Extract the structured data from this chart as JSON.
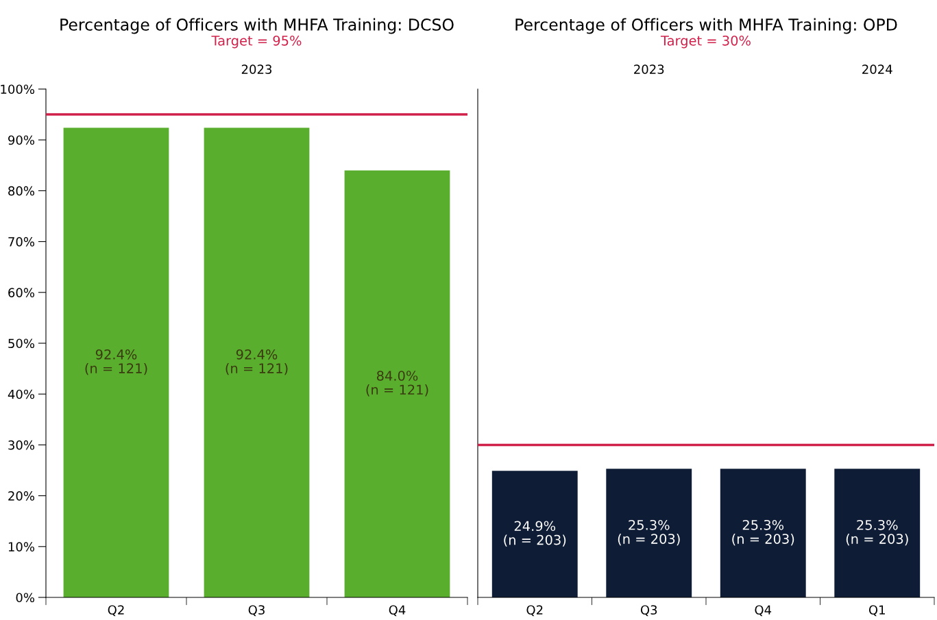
{
  "chart_data": [
    {
      "type": "bar",
      "title": "Percentage of Officers with MHFA Training: DCSO",
      "subtitle": "Target = 95%",
      "categories": [
        "Q2",
        "Q3",
        "Q4"
      ],
      "values": [
        92.4,
        92.4,
        84.0
      ],
      "color": "#5aae2e",
      "value_labels": [
        "92.4%\n(n = 121)",
        "92.4%\n(n = 121)",
        "84.0%\n(n = 121)"
      ],
      "ylim": [
        0,
        100
      ],
      "yticks": [
        {
          "value": 0,
          "label": "0%"
        },
        {
          "value": 10,
          "label": "10%"
        },
        {
          "value": 20,
          "label": "20%"
        },
        {
          "value": 30,
          "label": "30%"
        },
        {
          "value": 40,
          "label": "40%"
        },
        {
          "value": 50,
          "label": "50%"
        },
        {
          "value": 60,
          "label": "60%"
        },
        {
          "value": 70,
          "label": "70%"
        },
        {
          "value": 80,
          "label": "80%"
        },
        {
          "value": 90,
          "label": "90%"
        },
        {
          "value": 100,
          "label": "100%"
        }
      ],
      "ref_lines": [
        {
          "axis": "y",
          "value": 95,
          "color": "#d0204a"
        }
      ],
      "annotations": [
        "2023"
      ]
    },
    {
      "type": "bar",
      "title": "Percentage of Officers with MHFA Training: OPD",
      "subtitle": "Target = 30%",
      "categories": [
        "Q2",
        "Q3",
        "Q4",
        "Q1"
      ],
      "values": [
        24.9,
        25.3,
        25.3,
        25.3
      ],
      "color": "#0f1c36",
      "value_labels": [
        "24.9%\n(n = 203)",
        "25.3%\n(n = 203)",
        "25.3%\n(n = 203)",
        "25.3%\n(n = 203)"
      ],
      "ylim": [
        0,
        100
      ],
      "tick_labels": "x",
      "ref_lines": [
        {
          "axis": "y",
          "value": 30,
          "color": "#d0204a"
        }
      ],
      "annotations": [
        "2023",
        "2024"
      ]
    }
  ]
}
